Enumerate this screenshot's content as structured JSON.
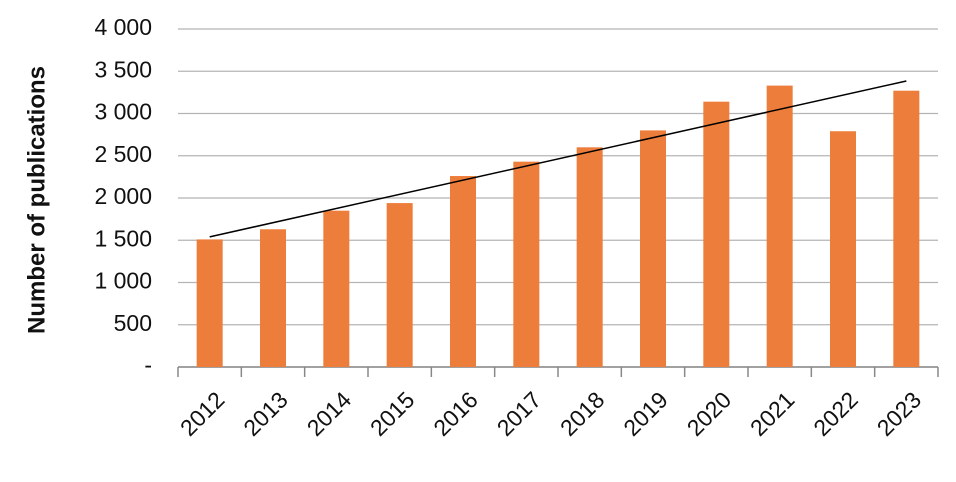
{
  "chart_data": {
    "type": "bar",
    "y_label": "Number of publications",
    "categories": [
      "2012",
      "2013",
      "2014",
      "2015",
      "2016",
      "2017",
      "2018",
      "2019",
      "2020",
      "2021",
      "2022",
      "2023"
    ],
    "values": [
      1510,
      1630,
      1850,
      1940,
      2260,
      2430,
      2600,
      2800,
      3140,
      3330,
      2790,
      3270
    ],
    "color": "#ed7d3b",
    "ylim": [
      0,
      4000
    ],
    "yticks": [
      {
        "value": 0,
        "label": "-"
      },
      500,
      {
        "value": 1000,
        "label": "1 000"
      },
      {
        "value": 1500,
        "label": "1 500"
      },
      {
        "value": 2000,
        "label": "2 000"
      },
      {
        "value": 2500,
        "label": "2 500"
      },
      {
        "value": 3000,
        "label": "3 000"
      },
      {
        "value": 3500,
        "label": "3 500"
      },
      {
        "value": 4000,
        "label": "4 000"
      }
    ],
    "grid": true,
    "trendline": true
  }
}
